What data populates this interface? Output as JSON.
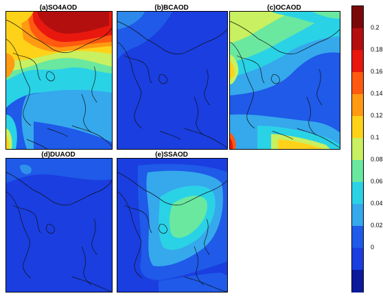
{
  "panels": [
    {
      "id": "a",
      "title": "(a)SO4AOD"
    },
    {
      "id": "b",
      "title": "(b)BCAOD"
    },
    {
      "id": "c",
      "title": "(c)OCAOD"
    },
    {
      "id": "d",
      "title": "(d)DUAOD"
    },
    {
      "id": "e",
      "title": "(e)SSAOD"
    }
  ],
  "colorbar": {
    "labels": [
      "0.2",
      "0.18",
      "0.16",
      "0.14",
      "0.12",
      "0.1",
      "0.08",
      "0.06",
      "0.04",
      "0.02",
      "0"
    ],
    "colors": [
      "#7a0a0a",
      "#b40f0f",
      "#e8180f",
      "#ff5a10",
      "#ff9a12",
      "#ffd21a",
      "#c8f060",
      "#6ae8a0",
      "#2ad2e6",
      "#36a8ec",
      "#1f5ae8",
      "#1a3ee0",
      "#0a1a9a"
    ],
    "palette": {
      "dark_blue": "#0a1a9a",
      "blue": "#1a3ee0",
      "mid_blue": "#1f5ae8",
      "light_blue": "#36a8ec",
      "cyan": "#2ad2e6",
      "aqua": "#6ae8a0",
      "light_green": "#c8f060",
      "yellow": "#ffd21a",
      "orange": "#ff9a12",
      "red_orange": "#ff5a10",
      "red": "#e8180f",
      "dark_red": "#b40f0f",
      "deep_red": "#7a0a0a"
    }
  }
}
